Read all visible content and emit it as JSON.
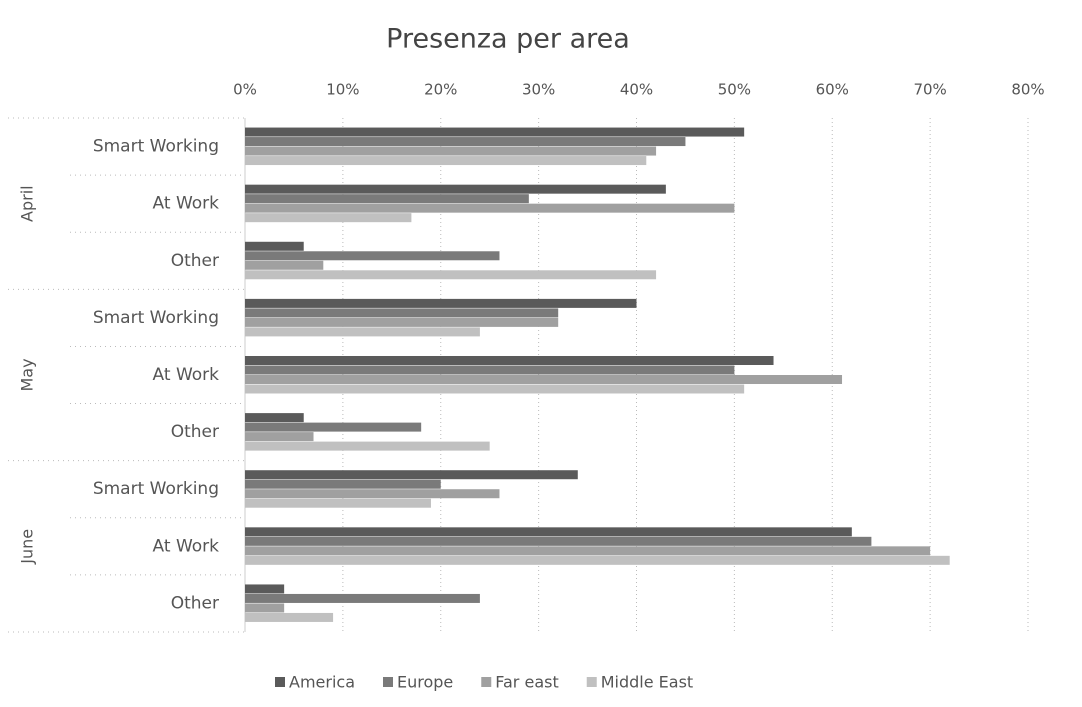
{
  "chart_data": {
    "type": "bar",
    "orientation": "horizontal",
    "title": "Presenza per area",
    "groups": [
      "April",
      "May",
      "June"
    ],
    "categories": [
      "Smart Working",
      "At Work",
      "Other",
      "Smart Working",
      "At Work",
      "Other",
      "Smart Working",
      "At Work",
      "Other"
    ],
    "series": [
      {
        "name": "America",
        "color": "#5a5a5a",
        "values": [
          51,
          43,
          6,
          40,
          54,
          6,
          34,
          62,
          4
        ]
      },
      {
        "name": "Europe",
        "color": "#7a7a7a",
        "values": [
          45,
          29,
          26,
          32,
          50,
          18,
          20,
          64,
          24
        ]
      },
      {
        "name": "Far east",
        "color": "#a0a0a0",
        "values": [
          42,
          50,
          8,
          32,
          61,
          7,
          26,
          70,
          4
        ]
      },
      {
        "name": "Middle East",
        "color": "#c0c0c0",
        "values": [
          41,
          17,
          42,
          24,
          51,
          25,
          19,
          72,
          9
        ]
      }
    ],
    "xlim": [
      0,
      80
    ],
    "xticks": [
      {
        "value": 0,
        "label": "0%"
      },
      {
        "value": 10,
        "label": "10%"
      },
      {
        "value": 20,
        "label": "20%"
      },
      {
        "value": 30,
        "label": "30%"
      },
      {
        "value": 40,
        "label": "40%"
      },
      {
        "value": 50,
        "label": "50%"
      },
      {
        "value": 60,
        "label": "60%"
      },
      {
        "value": 70,
        "label": "70%"
      },
      {
        "value": 80,
        "label": "80%"
      }
    ],
    "grid": true,
    "legend": "bottom"
  }
}
